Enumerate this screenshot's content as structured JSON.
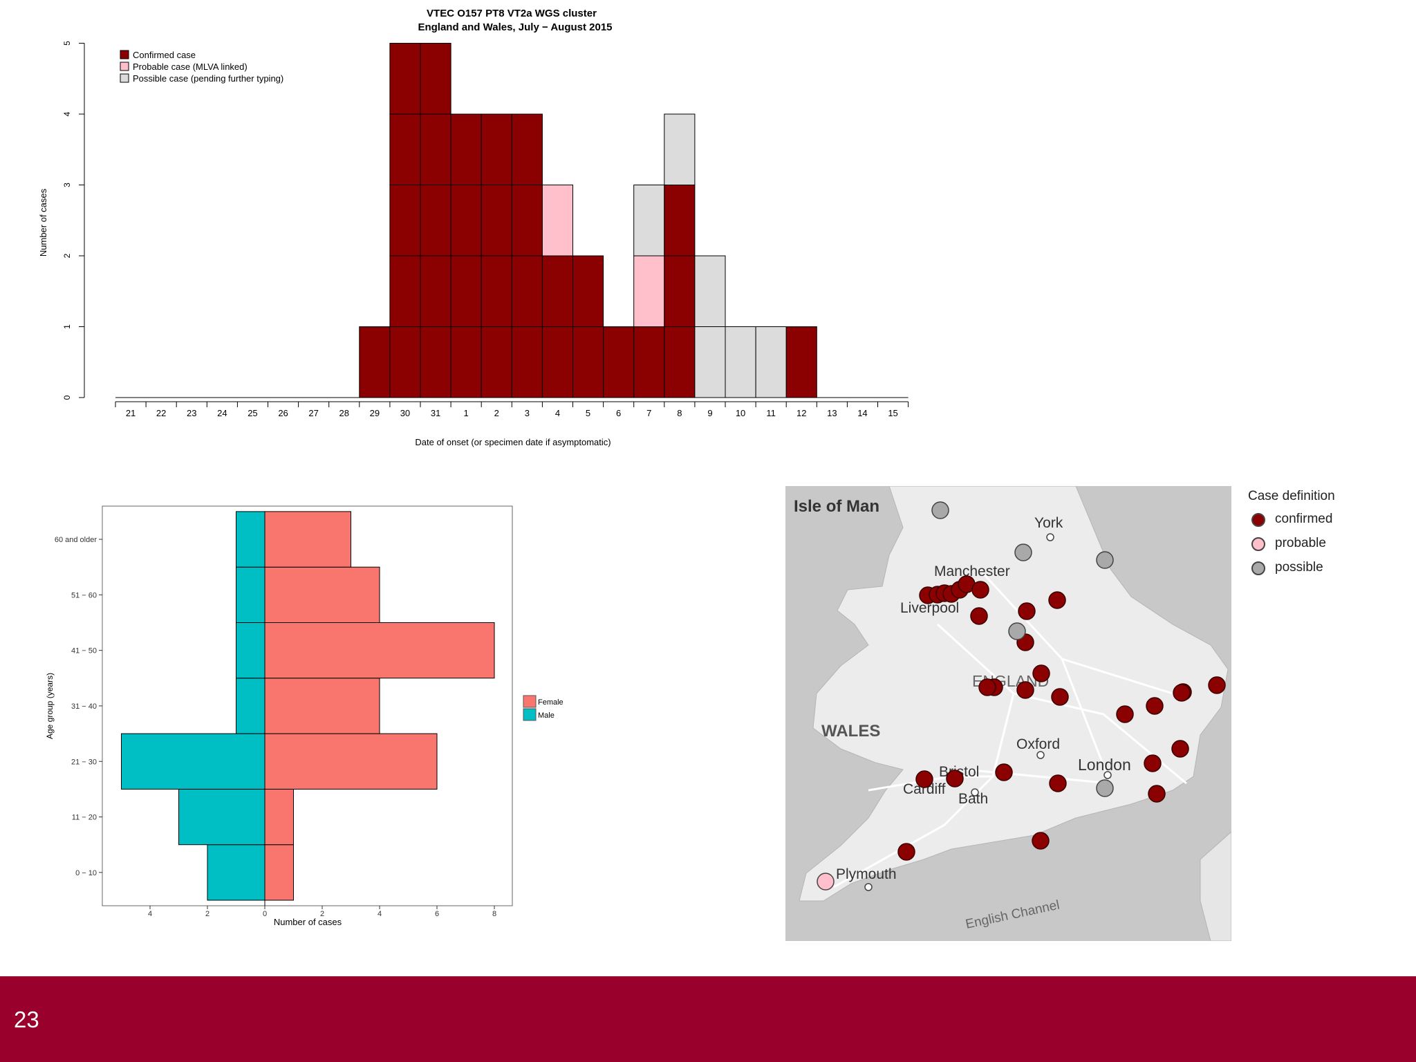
{
  "colors": {
    "confirmed": "#8b0000",
    "probable": "#ffc0cb",
    "possible": "#dcdcdc",
    "female": "#f8766d",
    "male": "#00bfc4",
    "footer": "#9a002c"
  },
  "page_number": "23",
  "chart_data": [
    {
      "type": "bar",
      "title": "VTEC O157 PT8 VT2a WGS cluster",
      "subtitle": "England and Wales, July − August 2015",
      "xlabel": "Date of onset (or specimen date if asymptomatic)",
      "ylabel": "Number of cases",
      "ylim": [
        0,
        5
      ],
      "yticks": [
        "0",
        "1",
        "2",
        "3",
        "4",
        "5"
      ],
      "categories": [
        "21",
        "22",
        "23",
        "24",
        "25",
        "26",
        "27",
        "28",
        "29",
        "30",
        "31",
        "1",
        "2",
        "3",
        "4",
        "5",
        "6",
        "7",
        "8",
        "9",
        "10",
        "11",
        "12",
        "13",
        "14",
        "15"
      ],
      "stacked": true,
      "legend_position": "top-left",
      "series": [
        {
          "name": "Confirmed case",
          "key": "confirmed",
          "values": [
            0,
            0,
            0,
            0,
            0,
            0,
            0,
            0,
            1,
            5,
            5,
            4,
            4,
            4,
            2,
            2,
            1,
            1,
            3,
            0,
            0,
            0,
            1,
            0,
            0,
            0
          ]
        },
        {
          "name": "Probable case (MLVA linked)",
          "key": "probable",
          "values": [
            0,
            0,
            0,
            0,
            0,
            0,
            0,
            0,
            0,
            0,
            0,
            0,
            0,
            0,
            1,
            0,
            0,
            1,
            0,
            0,
            0,
            0,
            0,
            0,
            0,
            0
          ]
        },
        {
          "name": "Possible case (pending further typing)",
          "key": "possible",
          "values": [
            0,
            0,
            0,
            0,
            0,
            0,
            0,
            0,
            0,
            0,
            0,
            0,
            0,
            0,
            0,
            0,
            0,
            1,
            1,
            2,
            1,
            1,
            0,
            0,
            0,
            0
          ]
        }
      ]
    },
    {
      "type": "bar",
      "orientation": "horizontal",
      "xlabel": "Number of cases",
      "ylabel": "Age group (years)",
      "categories": [
        "0 − 10",
        "11 − 20",
        "21 − 30",
        "31 − 40",
        "41 − 50",
        "51 − 60",
        "60 and older"
      ],
      "xticks": [
        "4",
        "2",
        "0",
        "2",
        "4",
        "6",
        "8"
      ],
      "legend_position": "right",
      "series": [
        {
          "name": "Female",
          "key": "female",
          "values": [
            1,
            1,
            6,
            4,
            8,
            4,
            3
          ]
        },
        {
          "name": "Male",
          "key": "male",
          "values": [
            2,
            3,
            5,
            1,
            1,
            1,
            1
          ]
        }
      ]
    }
  ],
  "map": {
    "legend_title": "Case definition",
    "legend": [
      {
        "key": "confirmed",
        "label": "confirmed"
      },
      {
        "key": "probable",
        "label": "probable"
      },
      {
        "key": "possible",
        "label": "possible"
      }
    ],
    "labels": [
      "Isle of Man",
      "York",
      "Manchester",
      "Liverpool",
      "ENGLAND",
      "WALES",
      "Oxford",
      "Bristol",
      "London",
      "Cardiff",
      "Bath",
      "Plymouth",
      "English Channel"
    ]
  }
}
